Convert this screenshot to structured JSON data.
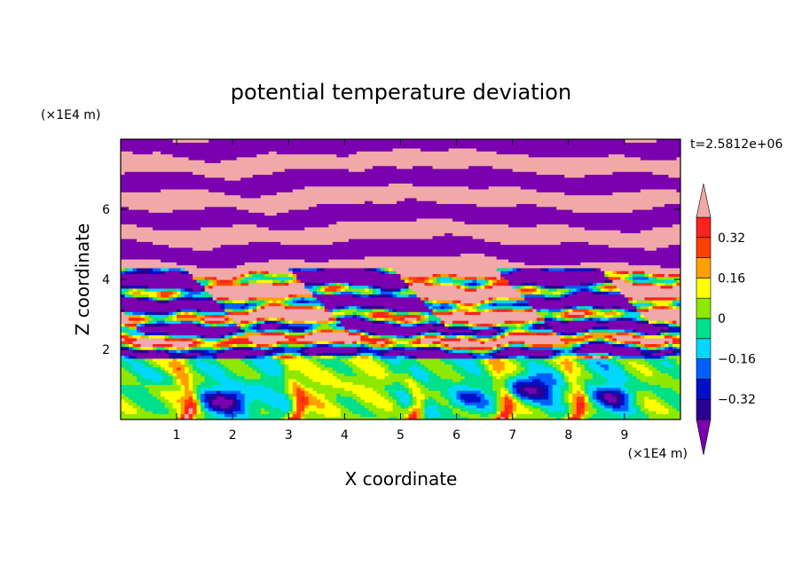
{
  "chart_data": {
    "type": "heatmap",
    "title": "potential temperature deviation",
    "xlabel": "X coordinate",
    "ylabel": "Z coordinate",
    "x_unit": "(×1E4 m)",
    "y_unit": "(×1E4 m)",
    "time_label": "t=2.5812e+06",
    "xlim": [
      0,
      10
    ],
    "ylim": [
      0,
      8
    ],
    "x_ticks": [
      1,
      2,
      3,
      4,
      5,
      6,
      7,
      8,
      9
    ],
    "y_ticks": [
      2,
      4,
      6
    ],
    "colorbar": {
      "levels": [
        -0.4,
        -0.32,
        -0.24,
        -0.16,
        -0.08,
        0,
        0.08,
        0.16,
        0.24,
        0.32,
        0.4
      ],
      "labeled_levels": [
        "0.32",
        "0.16",
        "0",
        "−0.16",
        "−0.32"
      ],
      "colors": [
        "#7a00b0",
        "#2a0090",
        "#0010c8",
        "#0060ff",
        "#00d8ff",
        "#00e08a",
        "#8ee800",
        "#ffff00",
        "#ffa000",
        "#ff4000",
        "#ff2020",
        "#f0a8a8"
      ],
      "extend": "both"
    }
  }
}
